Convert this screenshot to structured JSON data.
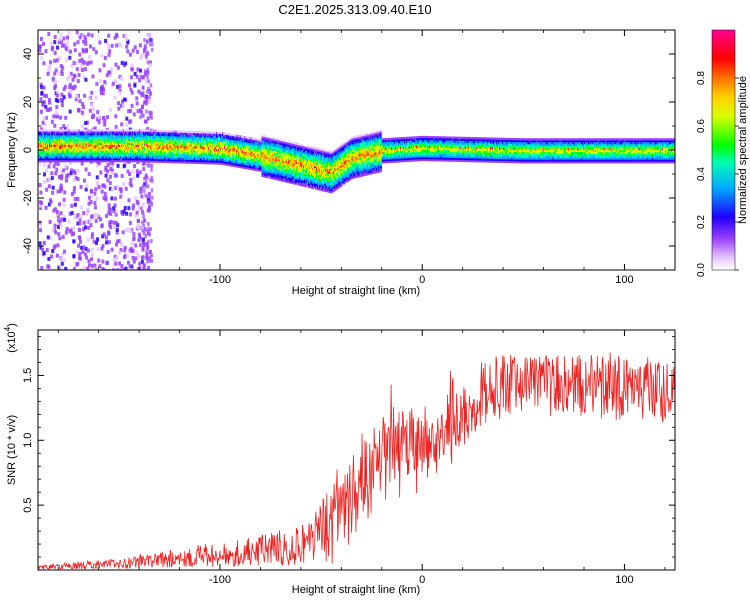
{
  "title": "C2E1.2025.313.09.40.E10",
  "chart_data": [
    {
      "type": "heatmap",
      "xlabel": "Height of straight line (km)",
      "ylabel": "Frequency (Hz)",
      "xlim": [
        -190,
        125
      ],
      "ylim": [
        -50,
        50
      ],
      "x_ticks": [
        -100,
        0,
        100
      ],
      "y_ticks": [
        -40,
        -20,
        0,
        20,
        40
      ],
      "colorbar": {
        "label": "Normalized spectral amplitude",
        "range": [
          0,
          1
        ],
        "ticks": [
          "0.0",
          "0.2",
          "0.4",
          "0.6",
          "0.8"
        ],
        "colors": [
          "#ffffff",
          "#d9b3ff",
          "#7a00ff",
          "#0000ff",
          "#00d8ff",
          "#00ff00",
          "#ffff00",
          "#ff8000",
          "#ff0000",
          "#ff0090"
        ]
      },
      "ridge": {
        "description_points": [
          {
            "x": -185,
            "y": 2
          },
          {
            "x": -140,
            "y": 2
          },
          {
            "x": -100,
            "y": 1
          },
          {
            "x": -80,
            "y": -2
          },
          {
            "x": -60,
            "y": -6
          },
          {
            "x": -45,
            "y": -9
          },
          {
            "x": -35,
            "y": -3
          },
          {
            "x": -20,
            "y": 0
          },
          {
            "x": 0,
            "y": 1
          },
          {
            "x": 50,
            "y": 0
          },
          {
            "x": 125,
            "y": 0
          }
        ]
      }
    },
    {
      "type": "line",
      "xlabel": "Height of straight line (km)",
      "ylabel": "SNR (10 * v/v)",
      "y_scale_note": "(x10",
      "y_scale_exp": "4",
      "xlim": [
        -190,
        125
      ],
      "ylim": [
        0,
        1.85
      ],
      "x_ticks": [
        -100,
        0,
        100
      ],
      "y_ticks": [
        0.5,
        1.0,
        1.5
      ],
      "y_tick_labels": [
        "0.5",
        "1.0",
        "1.5"
      ],
      "series": [
        {
          "color": "#ee2222",
          "envelope": [
            {
              "x": -190,
              "y": 0.02
            },
            {
              "x": -150,
              "y": 0.05
            },
            {
              "x": -120,
              "y": 0.1
            },
            {
              "x": -100,
              "y": 0.12
            },
            {
              "x": -80,
              "y": 0.15
            },
            {
              "x": -60,
              "y": 0.2
            },
            {
              "x": -50,
              "y": 0.3
            },
            {
              "x": -40,
              "y": 0.45
            },
            {
              "x": -30,
              "y": 0.7
            },
            {
              "x": -20,
              "y": 0.9
            },
            {
              "x": -10,
              "y": 0.95
            },
            {
              "x": 0,
              "y": 0.95
            },
            {
              "x": 10,
              "y": 1.05
            },
            {
              "x": 20,
              "y": 1.2
            },
            {
              "x": 30,
              "y": 1.38
            },
            {
              "x": 50,
              "y": 1.43
            },
            {
              "x": 80,
              "y": 1.42
            },
            {
              "x": 100,
              "y": 1.4
            },
            {
              "x": 125,
              "y": 1.38
            }
          ]
        }
      ]
    }
  ]
}
